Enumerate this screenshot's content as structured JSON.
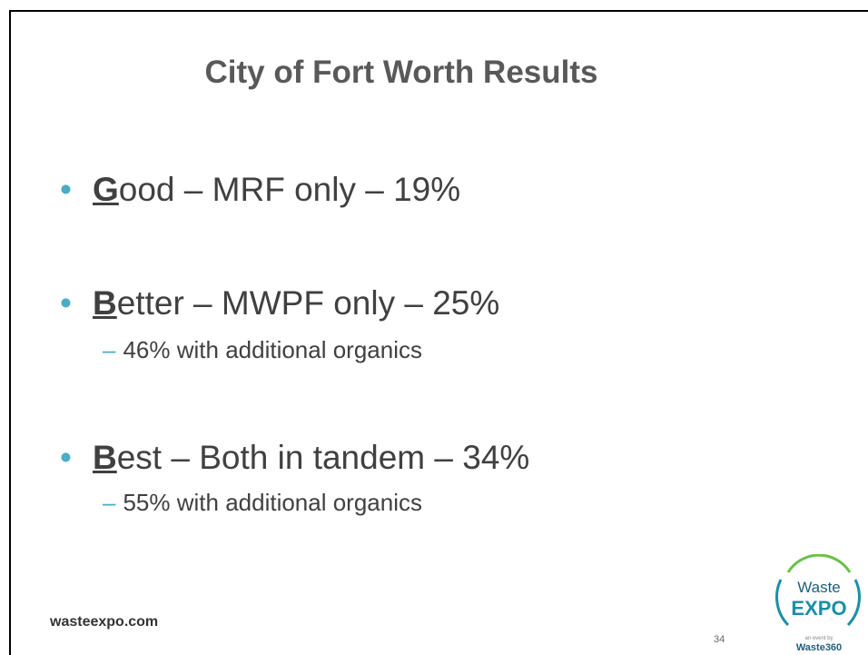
{
  "header": {
    "title": "City of Fort Worth Results"
  },
  "bullets": [
    {
      "initial": "G",
      "rest": "ood – MRF only – 19%",
      "sub": []
    },
    {
      "initial": "B",
      "rest": "etter – MWPF only – 25%",
      "sub": [
        "46% with additional organics"
      ]
    },
    {
      "initial": "B",
      "rest": "est – Both in tandem – 34%",
      "sub": [
        "55% with additional organics"
      ]
    }
  ],
  "footer": {
    "site": "wasteexpo.com",
    "page": "34"
  },
  "logo": {
    "line1": "Waste",
    "line2": "EXPO",
    "tagline": "an event by",
    "brand": "Waste360"
  }
}
